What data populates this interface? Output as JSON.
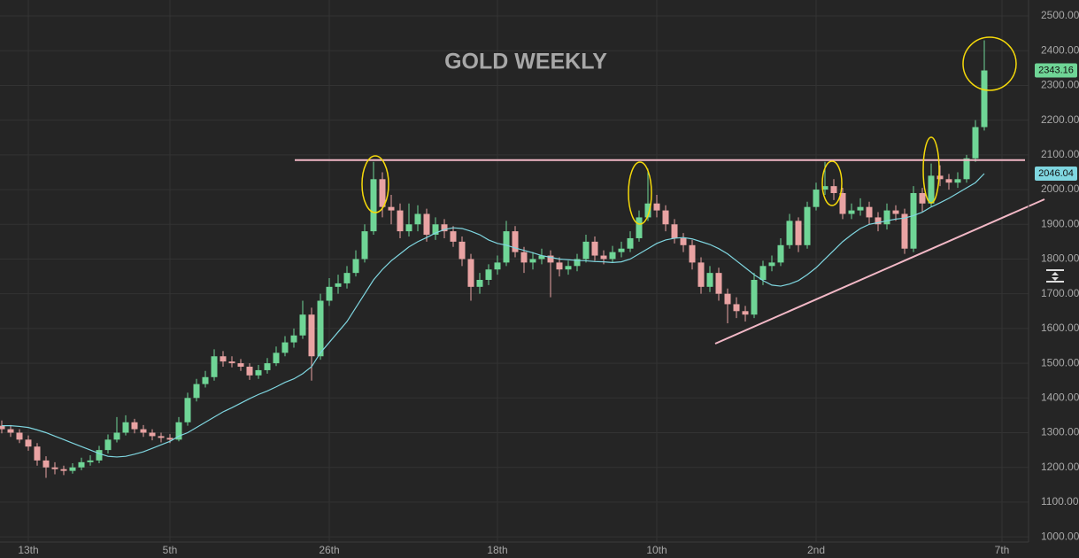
{
  "chart_data": {
    "type": "candlestick",
    "title": "GOLD WEEKLY",
    "title_color": "#f5c518",
    "categories": [
      null,
      null,
      null,
      "13th",
      null,
      null,
      null,
      null,
      null,
      null,
      null,
      null,
      null,
      null,
      null,
      null,
      null,
      null,
      null,
      "5th",
      null,
      null,
      null,
      null,
      null,
      null,
      null,
      null,
      null,
      null,
      null,
      null,
      null,
      null,
      null,
      null,
      null,
      "26th",
      null,
      null,
      null,
      null,
      null,
      null,
      null,
      null,
      null,
      null,
      null,
      null,
      null,
      null,
      null,
      null,
      null,
      null,
      "18th",
      null,
      null,
      null,
      null,
      null,
      null,
      null,
      null,
      null,
      null,
      null,
      null,
      null,
      null,
      null,
      null,
      null,
      "10th",
      null,
      null,
      null,
      null,
      null,
      null,
      null,
      null,
      null,
      null,
      null,
      null,
      null,
      null,
      null,
      null,
      null,
      "2nd",
      null,
      null,
      null,
      null,
      null,
      null,
      null,
      null,
      null,
      null,
      null,
      null,
      null,
      null,
      null,
      null,
      null,
      null,
      null,
      null,
      "7th"
    ],
    "open": [
      1320,
      1310,
      1300,
      1280,
      1260,
      1220,
      1200,
      1195,
      1190,
      1200,
      1215,
      1220,
      1250,
      1280,
      1300,
      1330,
      1310,
      1300,
      1290,
      1285,
      1280,
      1330,
      1400,
      1440,
      1460,
      1520,
      1505,
      1500,
      1490,
      1465,
      1480,
      1500,
      1530,
      1560,
      1580,
      1640,
      1520,
      1680,
      1720,
      1730,
      1760,
      1800,
      1880,
      2030,
      1950,
      1940,
      1880,
      1900,
      1930,
      1870,
      1900,
      1880,
      1850,
      1800,
      1720,
      1740,
      1770,
      1790,
      1880,
      1820,
      1790,
      1800,
      1810,
      1790,
      1770,
      1780,
      1800,
      1850,
      1810,
      1800,
      1820,
      1830,
      1860,
      1920,
      1960,
      1940,
      1900,
      1860,
      1840,
      1790,
      1720,
      1760,
      1700,
      1670,
      1650,
      1640,
      1740,
      1780,
      1790,
      1840,
      1910,
      1840,
      1950,
      2000,
      2010,
      1990,
      1930,
      1940,
      1950,
      1920,
      1900,
      1940,
      1930,
      1830,
      1990,
      1960,
      2040,
      2030,
      2020,
      2030,
      2090,
      2180,
      null,
      null
    ],
    "high": [
      1335,
      1322,
      1310,
      1292,
      1270,
      1232,
      1215,
      1205,
      1212,
      1228,
      1235,
      1262,
      1295,
      1345,
      1350,
      1340,
      1322,
      1310,
      1300,
      1296,
      1345,
      1415,
      1455,
      1478,
      1540,
      1535,
      1520,
      1512,
      1500,
      1495,
      1515,
      1548,
      1578,
      1600,
      1680,
      1660,
      1700,
      1745,
      1755,
      1780,
      1825,
      1900,
      2080,
      2050,
      1985,
      1960,
      1960,
      1955,
      1945,
      1920,
      1915,
      1895,
      1865,
      1815,
      1760,
      1785,
      1810,
      1910,
      1895,
      1835,
      1820,
      1830,
      1825,
      1805,
      1795,
      1815,
      1870,
      1865,
      1825,
      1838,
      1850,
      1880,
      1940,
      2060,
      1985,
      1955,
      1915,
      1875,
      1855,
      1805,
      1780,
      1775,
      1715,
      1690,
      1665,
      1760,
      1795,
      1810,
      1860,
      1930,
      1920,
      1965,
      2020,
      2080,
      2030,
      2005,
      1960,
      1975,
      1965,
      1935,
      1960,
      1955,
      1945,
      2010,
      2005,
      2075,
      2070,
      2045,
      2050,
      2100,
      2200,
      2430,
      null,
      null
    ],
    "low": [
      1298,
      1288,
      1270,
      1248,
      1205,
      1170,
      1180,
      1178,
      1182,
      1192,
      1205,
      1212,
      1240,
      1272,
      1292,
      1298,
      1288,
      1278,
      1272,
      1270,
      1275,
      1320,
      1390,
      1430,
      1450,
      1490,
      1488,
      1478,
      1452,
      1455,
      1470,
      1492,
      1520,
      1545,
      1570,
      1450,
      1510,
      1665,
      1700,
      1715,
      1750,
      1790,
      1870,
      1920,
      1900,
      1860,
      1865,
      1880,
      1850,
      1855,
      1860,
      1835,
      1780,
      1680,
      1700,
      1725,
      1755,
      1780,
      1805,
      1760,
      1770,
      1785,
      1690,
      1750,
      1755,
      1765,
      1790,
      1795,
      1785,
      1790,
      1805,
      1820,
      1850,
      1910,
      1920,
      1880,
      1845,
      1820,
      1770,
      1700,
      1705,
      1680,
      1615,
      1630,
      1620,
      1630,
      1725,
      1765,
      1780,
      1830,
      1820,
      1830,
      1940,
      1985,
      1970,
      1915,
      1915,
      1925,
      1900,
      1880,
      1885,
      1910,
      1815,
      1820,
      1935,
      1950,
      2010,
      2000,
      2005,
      2020,
      2080,
      2170,
      null,
      null
    ],
    "close": [
      1310,
      1300,
      1280,
      1260,
      1220,
      1200,
      1195,
      1190,
      1200,
      1215,
      1220,
      1250,
      1280,
      1300,
      1330,
      1310,
      1300,
      1290,
      1285,
      1280,
      1330,
      1400,
      1440,
      1460,
      1520,
      1505,
      1500,
      1490,
      1465,
      1480,
      1500,
      1530,
      1560,
      1580,
      1640,
      1520,
      1680,
      1720,
      1730,
      1760,
      1800,
      1880,
      2030,
      1950,
      1940,
      1880,
      1900,
      1930,
      1870,
      1900,
      1880,
      1850,
      1800,
      1720,
      1740,
      1770,
      1790,
      1880,
      1820,
      1790,
      1800,
      1810,
      1790,
      1770,
      1780,
      1800,
      1850,
      1810,
      1800,
      1820,
      1830,
      1860,
      1920,
      1960,
      1940,
      1900,
      1860,
      1840,
      1790,
      1720,
      1760,
      1700,
      1670,
      1650,
      1640,
      1740,
      1780,
      1790,
      1840,
      1910,
      1840,
      1950,
      2000,
      2010,
      1990,
      1930,
      1940,
      1950,
      1920,
      1900,
      1940,
      1930,
      1830,
      1990,
      1960,
      2040,
      2030,
      2020,
      2030,
      2090,
      2180,
      2343.16,
      null,
      null
    ],
    "up_color": "#6fd596",
    "down_color": "#e9a3a3",
    "ma": {
      "color": "#7fd6e0",
      "values": [
        1320,
        1320,
        1318,
        1315,
        1308,
        1300,
        1290,
        1280,
        1270,
        1260,
        1250,
        1240,
        1232,
        1230,
        1232,
        1238,
        1245,
        1255,
        1265,
        1275,
        1290,
        1300,
        1315,
        1330,
        1345,
        1360,
        1372,
        1385,
        1398,
        1410,
        1420,
        1432,
        1445,
        1455,
        1470,
        1490,
        1530,
        1560,
        1590,
        1620,
        1660,
        1700,
        1740,
        1770,
        1795,
        1815,
        1835,
        1850,
        1862,
        1875,
        1885,
        1890,
        1888,
        1880,
        1870,
        1855,
        1845,
        1840,
        1832,
        1825,
        1818,
        1810,
        1805,
        1800,
        1798,
        1796,
        1795,
        1793,
        1792,
        1790,
        1792,
        1800,
        1815,
        1830,
        1845,
        1855,
        1860,
        1862,
        1858,
        1850,
        1842,
        1830,
        1815,
        1795,
        1775,
        1755,
        1738,
        1725,
        1722,
        1728,
        1738,
        1755,
        1775,
        1800,
        1825,
        1850,
        1870,
        1888,
        1900,
        1905,
        1910,
        1915,
        1918,
        1925,
        1935,
        1950,
        1962,
        1975,
        1990,
        2005,
        2020,
        2046.04,
        null,
        null
      ]
    },
    "resistance": 2085,
    "resistance_color": "#f2b8c6",
    "ylim": [
      985,
      2546
    ],
    "yticks": [
      {
        "value": 1000,
        "label": "1000.00"
      },
      {
        "value": 1100,
        "label": "1100.00"
      },
      {
        "value": 1200,
        "label": "1200.00"
      },
      {
        "value": 1300,
        "label": "1300.00"
      },
      {
        "value": 1400,
        "label": "1400.00"
      },
      {
        "value": 1500,
        "label": "1500.00"
      },
      {
        "value": 1600,
        "label": "1600.00"
      },
      {
        "value": 1700,
        "label": "1700.00"
      },
      {
        "value": 1800,
        "label": "1800.00"
      },
      {
        "value": 1900,
        "label": "1900.00"
      },
      {
        "value": 2000,
        "label": "2000.00"
      },
      {
        "value": 2100,
        "label": "2100.00"
      },
      {
        "value": 2200,
        "label": "2200.00"
      },
      {
        "value": 2300,
        "label": "2300.00"
      },
      {
        "value": 2400,
        "label": "2400.00"
      },
      {
        "value": 2500,
        "label": "2500.00"
      }
    ],
    "grid": true
  }
}
